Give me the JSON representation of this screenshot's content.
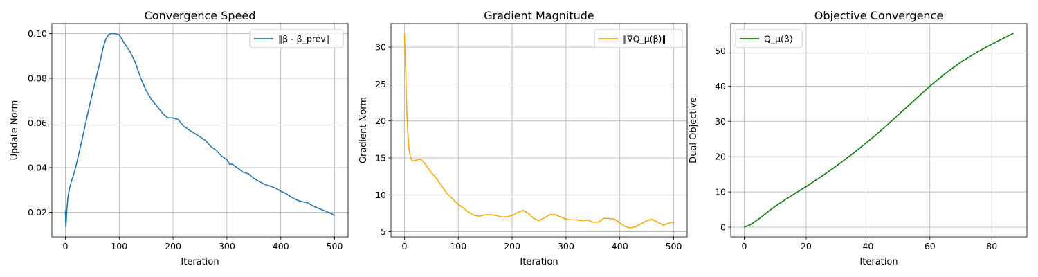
{
  "chart_data": [
    {
      "type": "line",
      "title": "Convergence Speed",
      "xlabel": "Iteration",
      "ylabel": "Update Norm",
      "xlim": [
        -25,
        525
      ],
      "ylim": [
        0.009,
        0.1045
      ],
      "xticks": [
        0,
        100,
        200,
        300,
        400,
        500
      ],
      "yticks": [
        0.02,
        0.04,
        0.06,
        0.08,
        0.1
      ],
      "xtick_labels": [
        "0",
        "100",
        "200",
        "300",
        "400",
        "500"
      ],
      "ytick_labels": [
        "0.02",
        "0.04",
        "0.06",
        "0.08",
        "0.10"
      ],
      "grid": true,
      "legend_position": "top-right",
      "series": [
        {
          "name": "‖β - β_prev‖",
          "color": "#1f77b4",
          "x": [
            0,
            1,
            3,
            5,
            8,
            12,
            15,
            20,
            30,
            40,
            50,
            60,
            65,
            70,
            75,
            80,
            85,
            90,
            95,
            100,
            105,
            110,
            120,
            130,
            140,
            150,
            160,
            170,
            180,
            185,
            190,
            200,
            210,
            215,
            220,
            230,
            240,
            250,
            260,
            270,
            280,
            290,
            300,
            305,
            310,
            320,
            330,
            340,
            350,
            360,
            370,
            380,
            390,
            400,
            410,
            420,
            430,
            440,
            450,
            460,
            470,
            480,
            490,
            495,
            500
          ],
          "y": [
            0.021,
            0.0135,
            0.022,
            0.027,
            0.031,
            0.0345,
            0.0365,
            0.041,
            0.0515,
            0.0625,
            0.073,
            0.083,
            0.088,
            0.0935,
            0.0975,
            0.0995,
            0.1,
            0.1,
            0.0998,
            0.0995,
            0.0975,
            0.0955,
            0.092,
            0.087,
            0.08,
            0.0745,
            0.0705,
            0.0675,
            0.0645,
            0.0633,
            0.0623,
            0.0622,
            0.0615,
            0.0598,
            0.0585,
            0.0568,
            0.0553,
            0.0538,
            0.0522,
            0.0495,
            0.0478,
            0.0452,
            0.0435,
            0.0415,
            0.0415,
            0.0398,
            0.038,
            0.0372,
            0.0352,
            0.0338,
            0.0325,
            0.0318,
            0.0308,
            0.0295,
            0.0283,
            0.0267,
            0.0255,
            0.0247,
            0.0243,
            0.0228,
            0.0218,
            0.0208,
            0.0198,
            0.0193,
            0.0185
          ]
        }
      ]
    },
    {
      "type": "line",
      "title": "Gradient Magnitude",
      "xlabel": "Iteration",
      "ylabel": "Gradient Norm",
      "xlim": [
        -25,
        525
      ],
      "ylim": [
        4.3,
        33.2
      ],
      "xticks": [
        0,
        100,
        200,
        300,
        400,
        500
      ],
      "yticks": [
        5,
        10,
        15,
        20,
        25,
        30
      ],
      "xtick_labels": [
        "0",
        "100",
        "200",
        "300",
        "400",
        "500"
      ],
      "ytick_labels": [
        "5",
        "10",
        "15",
        "20",
        "25",
        "30"
      ],
      "grid": true,
      "legend_position": "top-right",
      "series": [
        {
          "name": "‖∇Q_μ(β)‖",
          "color": "#ffa500",
          "x": [
            0,
            2,
            4,
            6,
            8,
            10,
            12,
            15,
            20,
            25,
            30,
            35,
            40,
            45,
            50,
            55,
            60,
            65,
            70,
            80,
            90,
            100,
            110,
            120,
            130,
            140,
            150,
            160,
            170,
            180,
            190,
            200,
            210,
            220,
            230,
            240,
            250,
            260,
            270,
            280,
            290,
            300,
            310,
            320,
            330,
            340,
            350,
            360,
            370,
            380,
            390,
            400,
            410,
            420,
            430,
            440,
            450,
            460,
            470,
            480,
            490,
            495,
            500
          ],
          "y": [
            31.8,
            27.5,
            22.0,
            18.8,
            16.5,
            15.5,
            14.9,
            14.6,
            14.6,
            14.8,
            14.8,
            14.5,
            14.0,
            13.5,
            13.0,
            12.6,
            12.2,
            11.6,
            11.1,
            10.1,
            9.4,
            8.7,
            8.2,
            7.6,
            7.2,
            7.1,
            7.3,
            7.3,
            7.2,
            7.0,
            7.0,
            7.2,
            7.6,
            7.9,
            7.5,
            6.8,
            6.5,
            6.9,
            7.3,
            7.3,
            7.0,
            6.7,
            6.6,
            6.6,
            6.5,
            6.6,
            6.3,
            6.3,
            6.8,
            6.8,
            6.7,
            6.2,
            5.7,
            5.5,
            5.7,
            6.1,
            6.5,
            6.7,
            6.3,
            5.9,
            6.1,
            6.3,
            6.2
          ]
        }
      ]
    },
    {
      "type": "line",
      "title": "Objective Convergence",
      "xlabel": "Iteration",
      "ylabel": "Dual Objective",
      "xlim": [
        -4.35,
        91.35
      ],
      "ylim": [
        -2.75,
        57.75
      ],
      "xticks": [
        0,
        20,
        40,
        60,
        80
      ],
      "yticks": [
        0,
        10,
        20,
        30,
        40,
        50
      ],
      "xtick_labels": [
        "0",
        "20",
        "40",
        "60",
        "80"
      ],
      "ytick_labels": [
        "0",
        "10",
        "20",
        "30",
        "40",
        "50"
      ],
      "grid": true,
      "legend_position": "top-left",
      "series": [
        {
          "name": "Q_μ(β)",
          "color": "#008000",
          "x": [
            0,
            2,
            5,
            8,
            10,
            15,
            20,
            25,
            30,
            35,
            40,
            45,
            50,
            55,
            60,
            65,
            70,
            75,
            80,
            85,
            87
          ],
          "y": [
            0,
            0.7,
            2.5,
            4.6,
            5.9,
            8.8,
            11.5,
            14.4,
            17.5,
            20.8,
            24.3,
            28.0,
            32.0,
            36.0,
            40.0,
            43.6,
            46.8,
            49.5,
            51.9,
            54.1,
            55.0
          ]
        }
      ]
    }
  ]
}
